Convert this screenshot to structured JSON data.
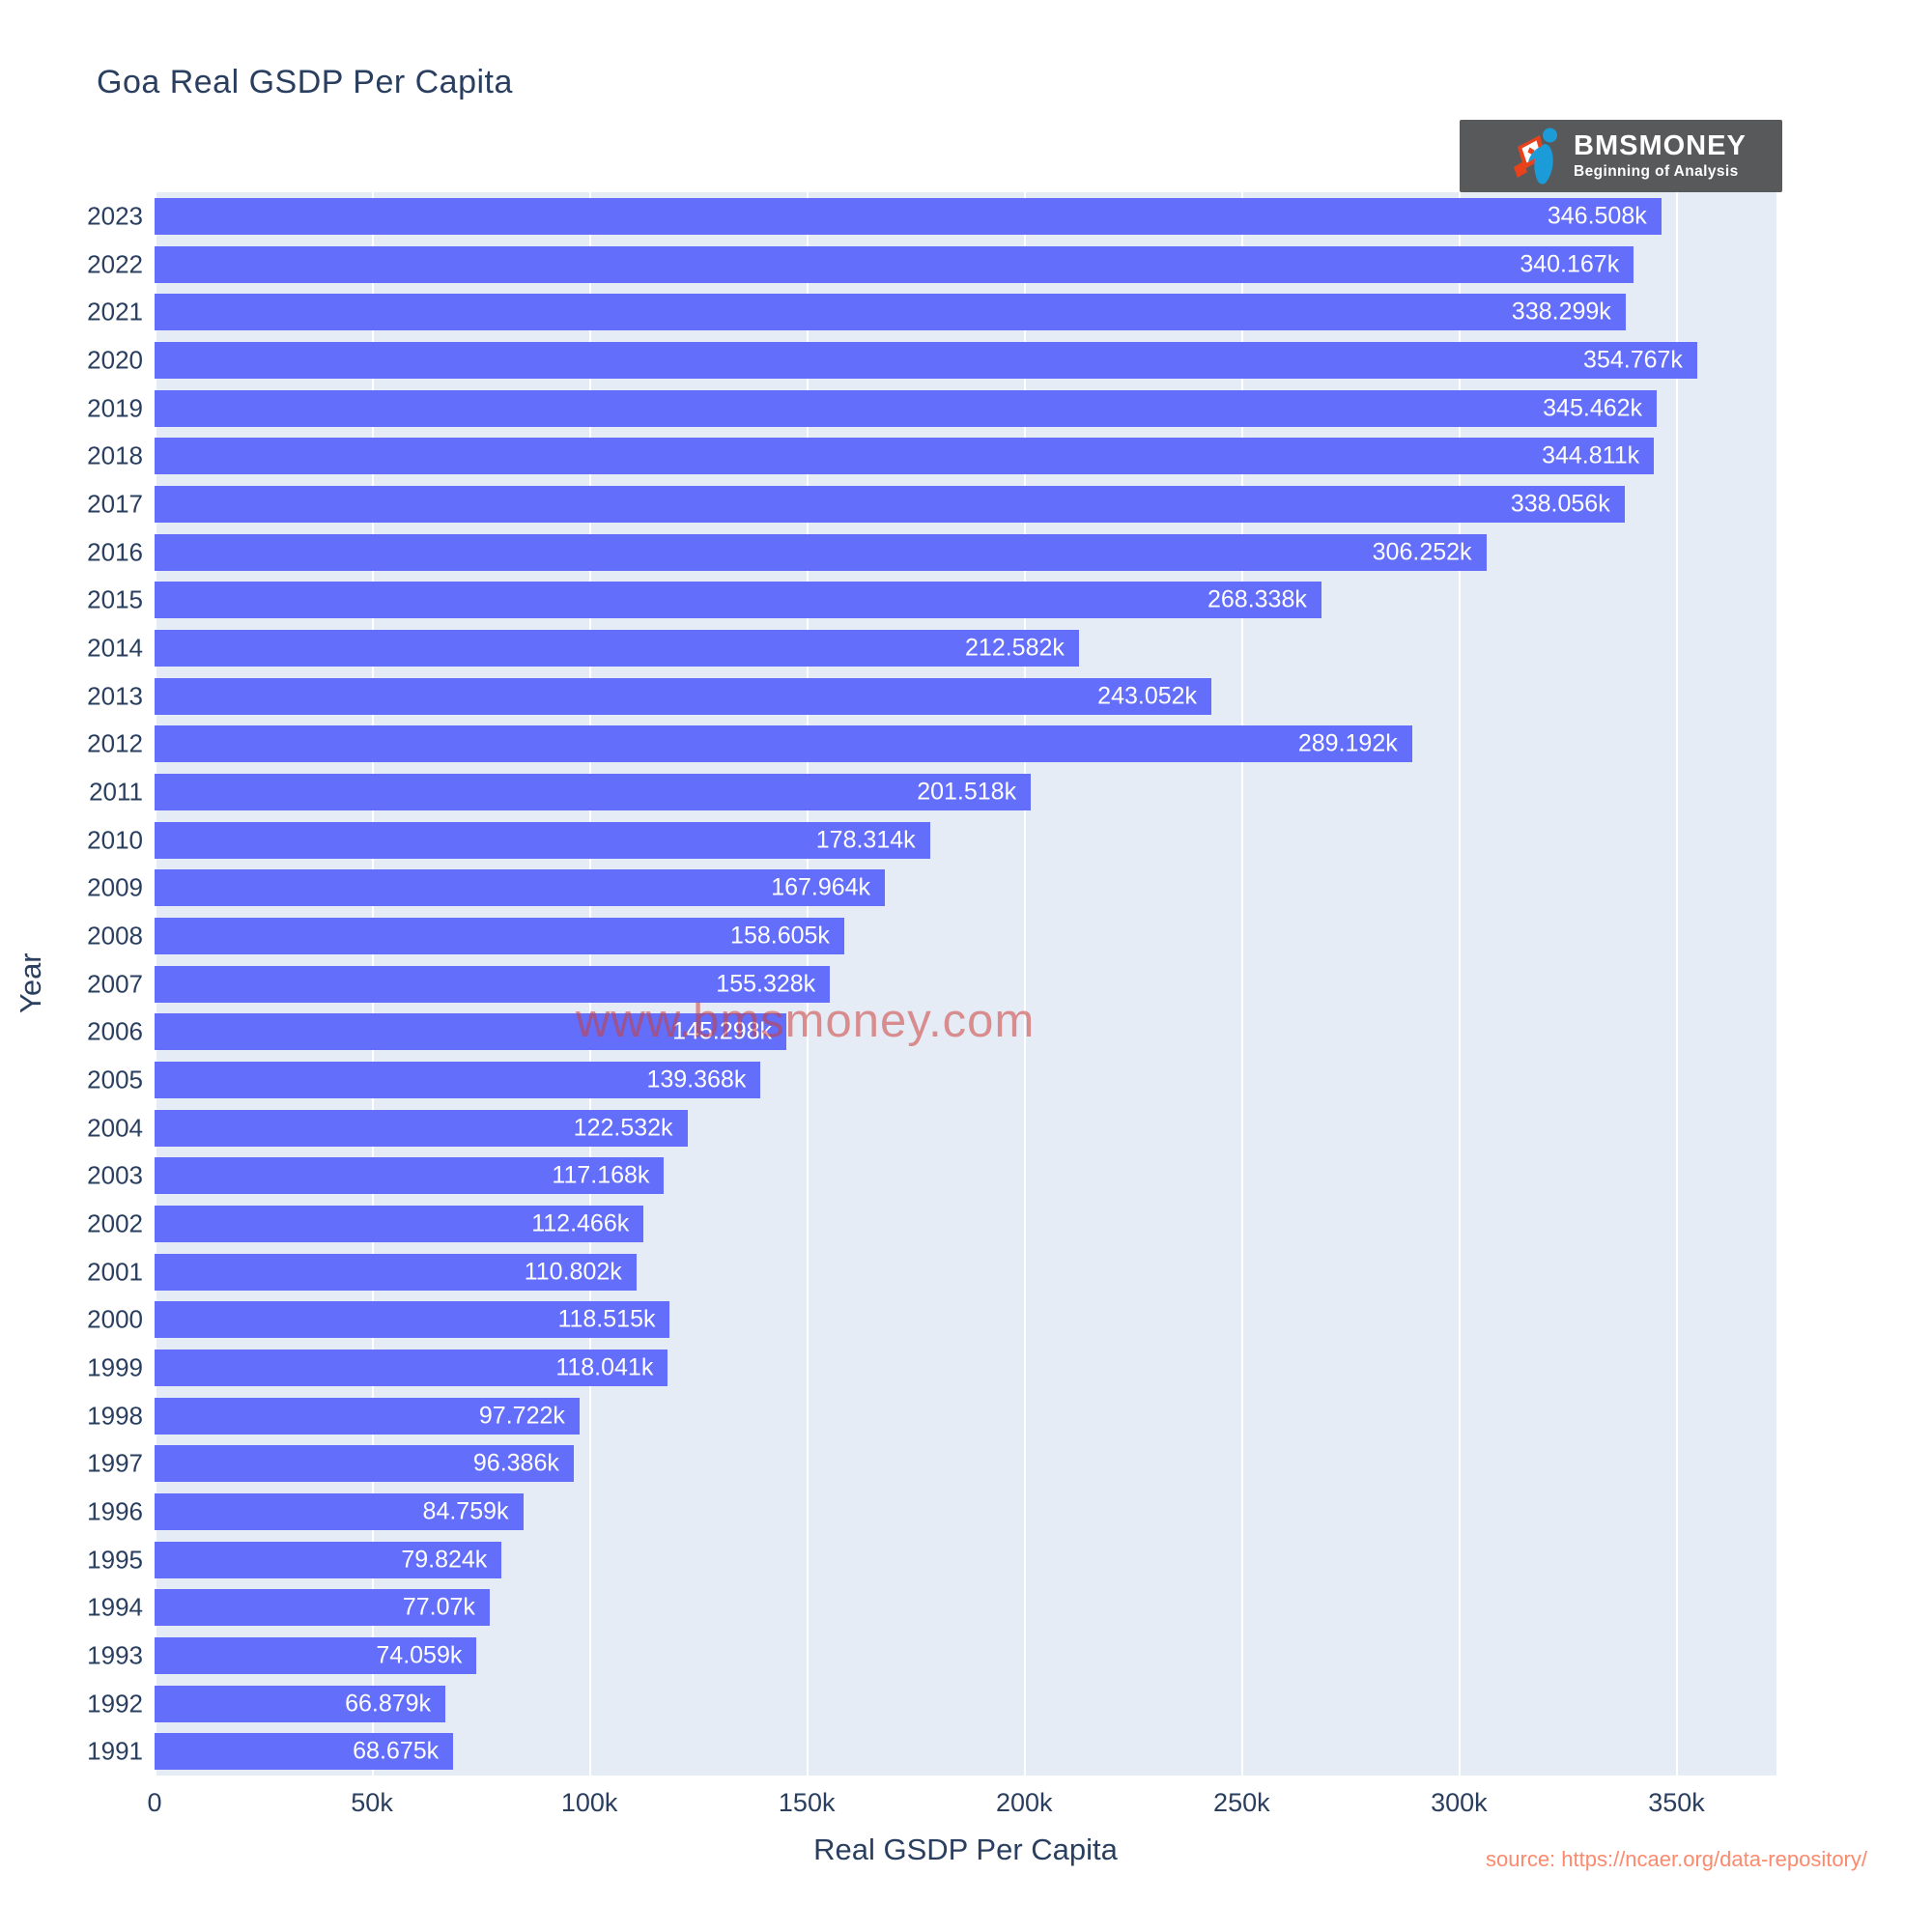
{
  "title": "Goa Real GSDP Per Capita",
  "watermark": "www.bmsmoney.com",
  "source_note": "source: https://ncaer.org/data-repository/",
  "logo": {
    "brand": "BMSMONEY",
    "tagline": "Beginning of Analysis"
  },
  "colors": {
    "bar": "#636EFA",
    "plot_background": "#E5ECF6",
    "text": "#2a3f5f",
    "value_label": "#ffffff",
    "watermark": "rgba(205,62,55,0.55)",
    "source": "#fb8a6e",
    "logo_background": "#58595B",
    "logo_blue": "#1b9cd8",
    "logo_red": "#e8421d"
  },
  "chart_data": {
    "type": "bar",
    "orientation": "horizontal",
    "title": "Goa Real GSDP Per Capita",
    "xlabel": "Real GSDP Per Capita",
    "ylabel": "Year",
    "unit": "k",
    "grid": true,
    "categories": [
      "2023",
      "2022",
      "2021",
      "2020",
      "2019",
      "2018",
      "2017",
      "2016",
      "2015",
      "2014",
      "2013",
      "2012",
      "2011",
      "2010",
      "2009",
      "2008",
      "2007",
      "2006",
      "2005",
      "2004",
      "2003",
      "2002",
      "2001",
      "2000",
      "1999",
      "1998",
      "1997",
      "1996",
      "1995",
      "1994",
      "1993",
      "1992",
      "1991"
    ],
    "values": [
      346.508,
      340.167,
      338.299,
      354.767,
      345.462,
      344.811,
      338.056,
      306.252,
      268.338,
      212.582,
      243.052,
      289.192,
      201.518,
      178.314,
      167.964,
      158.605,
      155.328,
      145.298,
      139.368,
      122.532,
      117.168,
      112.466,
      110.802,
      118.515,
      118.041,
      97.722,
      96.386,
      84.759,
      79.824,
      77.07,
      74.059,
      66.879,
      68.675
    ],
    "value_labels": [
      "346.508k",
      "340.167k",
      "338.299k",
      "354.767k",
      "345.462k",
      "344.811k",
      "338.056k",
      "306.252k",
      "268.338k",
      "212.582k",
      "243.052k",
      "289.192k",
      "201.518k",
      "178.314k",
      "167.964k",
      "158.605k",
      "155.328k",
      "145.298k",
      "139.368k",
      "122.532k",
      "117.168k",
      "112.466k",
      "110.802k",
      "118.515k",
      "118.041k",
      "97.722k",
      "96.386k",
      "84.759k",
      "79.824k",
      "77.07k",
      "74.059k",
      "66.879k",
      "68.675k"
    ],
    "xlim": [
      0,
      373
    ],
    "xticks": {
      "values": [
        0,
        50,
        100,
        150,
        200,
        250,
        300,
        350
      ],
      "labels": [
        "0",
        "50k",
        "100k",
        "150k",
        "200k",
        "250k",
        "300k",
        "350k"
      ]
    }
  }
}
